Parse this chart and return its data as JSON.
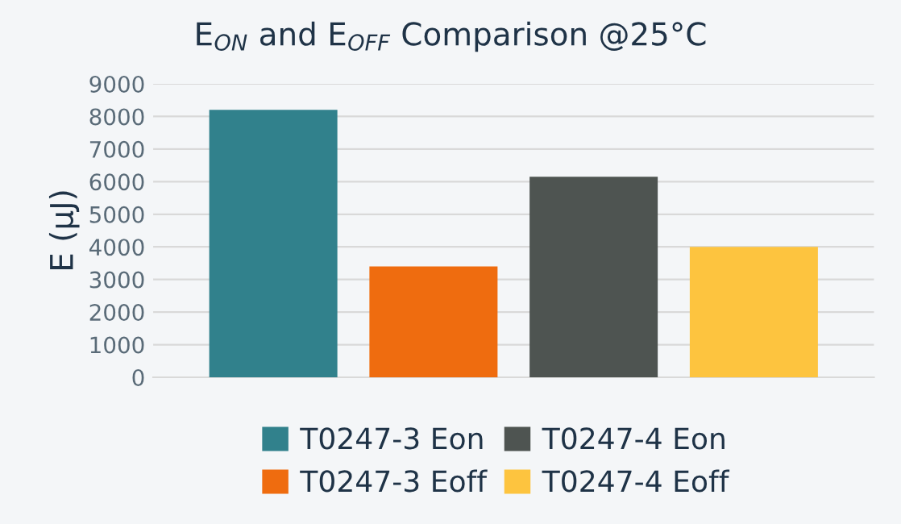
{
  "chart_data": {
    "type": "bar",
    "title": "E$_{ON}$ and E$_{OFF}$ Comparison @25°C",
    "ylabel": "E (μJ)",
    "categories": [
      null
    ],
    "series": [
      {
        "name": "T0247-3 Eon",
        "color": "#31818c",
        "values": [
          8200
        ]
      },
      {
        "name": "T0247-3 Eoff",
        "color": "#ef6c0f",
        "values": [
          3400
        ]
      },
      {
        "name": "T0247-4 Eon",
        "color": "#4e5451",
        "values": [
          6150
        ]
      },
      {
        "name": "T0247-4 Eoff",
        "color": "#fdc43f",
        "values": [
          4000
        ]
      }
    ],
    "ylim": [
      0,
      9000
    ],
    "yticks": [
      0,
      1000,
      2000,
      3000,
      4000,
      5000,
      6000,
      7000,
      8000,
      9000
    ],
    "grid": "y",
    "legend": "bottom"
  }
}
